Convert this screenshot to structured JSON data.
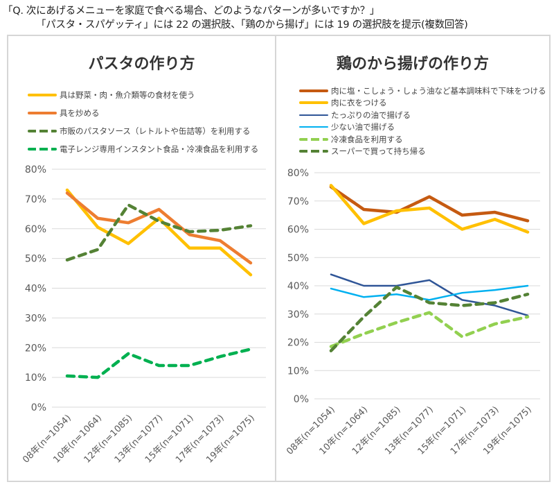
{
  "question": {
    "line1": "「Q. 次にあげるメニューを家庭で食べる場合、どのようなパターンが多いですか？」",
    "line2": "「パスタ・スパゲッティ」には 22 の選択肢、「鶏のから揚げ」には 19 の選択肢を提示(複数回答)"
  },
  "chart_data": [
    {
      "type": "line",
      "title": "パスタの作り方",
      "categories": [
        "08年(n=1054)",
        "10年(n=1064)",
        "12年(n=1085)",
        "13年(n=1077)",
        "15年(n=1071)",
        "17年(n=1073)",
        "19年(n=1075)"
      ],
      "ylim": [
        0,
        80
      ],
      "yticks": [
        "0%",
        "10%",
        "20%",
        "30%",
        "40%",
        "50%",
        "60%",
        "70%",
        "80%"
      ],
      "grid": true,
      "legend": "top",
      "series": [
        {
          "name": "具は野菜・肉・魚介類等の食材を使う",
          "color": "#FFC000",
          "dash": false,
          "values": [
            73,
            60.5,
            55,
            63.5,
            53.5,
            53.5,
            44.5
          ]
        },
        {
          "name": "具を炒める",
          "color": "#ED7D31",
          "dash": false,
          "values": [
            72,
            63.5,
            62,
            66.5,
            58,
            56,
            48.5
          ]
        },
        {
          "name": "市販のパスタソース（レトルトや缶詰等）を利用する",
          "color": "#548235",
          "dash": true,
          "values": [
            49.5,
            53,
            68,
            62.5,
            59,
            59.5,
            61
          ]
        },
        {
          "name": "電子レンジ専用インスタント食品・冷凍食品を利用する",
          "color": "#00B050",
          "dash": true,
          "values": [
            10.5,
            10,
            18,
            14,
            14,
            17,
            19.5
          ]
        }
      ]
    },
    {
      "type": "line",
      "title": "鶏のから揚げの作り方",
      "categories": [
        "08年(n=1054)",
        "10年(n=1064)",
        "12年(n=1085)",
        "13年(n=1077)",
        "15年(n=1071)",
        "17年(n=1073)",
        "19年(n=1075)"
      ],
      "ylim": [
        0,
        80
      ],
      "yticks": [
        "0%",
        "10%",
        "20%",
        "30%",
        "40%",
        "50%",
        "60%",
        "70%",
        "80%"
      ],
      "grid": true,
      "legend": "top",
      "series": [
        {
          "name": "肉に塩・こしょう・しょう油など基本調味料で下味をつける",
          "color": "#C55A11",
          "dash": false,
          "values": [
            75,
            67,
            66,
            71.5,
            65,
            66,
            63
          ]
        },
        {
          "name": "肉に衣をつける",
          "color": "#FFC000",
          "dash": false,
          "values": [
            75.5,
            62,
            66.5,
            67.5,
            60,
            63.5,
            59
          ]
        },
        {
          "name": "たっぷりの油で揚げる",
          "color": "#2F5597",
          "dash": false,
          "thin": true,
          "values": [
            44,
            40,
            40,
            42,
            35,
            33,
            29.5
          ]
        },
        {
          "name": "少ない油で揚げる",
          "color": "#00B0F0",
          "dash": false,
          "thin": true,
          "values": [
            39,
            36,
            37,
            35,
            37.5,
            38.5,
            40
          ]
        },
        {
          "name": "冷凍食品を利用する",
          "color": "#92D050",
          "dash": true,
          "values": [
            18.5,
            23,
            27,
            30.5,
            22,
            26.5,
            29
          ]
        },
        {
          "name": "スーパーで買って持ち帰る",
          "color": "#548235",
          "dash": true,
          "values": [
            17,
            29,
            39.5,
            34,
            33,
            34,
            37
          ]
        }
      ]
    }
  ]
}
